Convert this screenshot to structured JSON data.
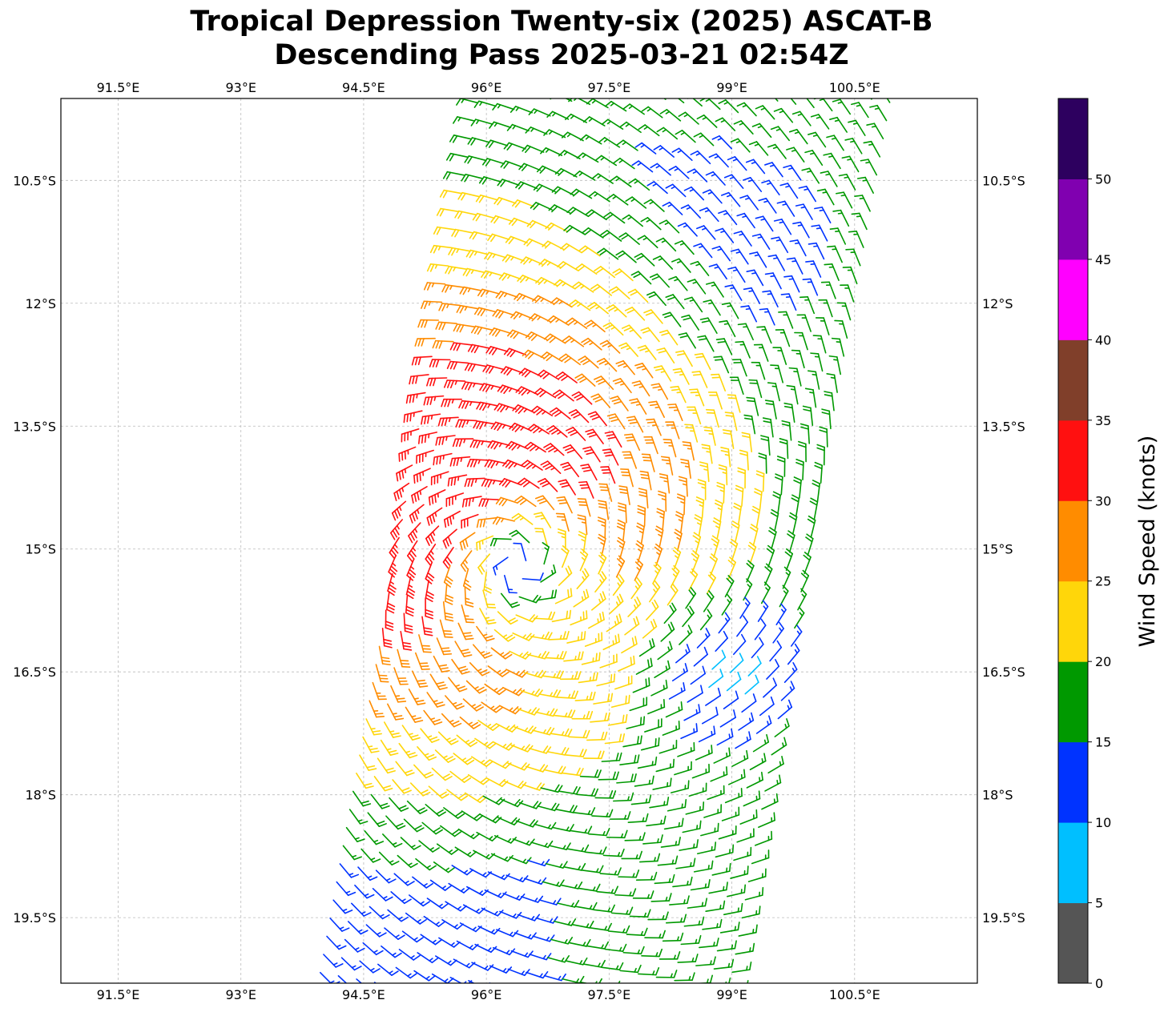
{
  "title": {
    "line1": "Tropical Depression Twenty-six (2025) ASCAT-B",
    "line2": "Descending Pass 2025-03-21 02:54Z"
  },
  "chart_data": {
    "type": "wind_barbs_map",
    "lon_range": [
      90.8,
      102.0
    ],
    "lat_range": [
      -20.3,
      -9.5
    ],
    "lon_ticks": [
      91.5,
      93,
      94.5,
      96,
      97.5,
      99,
      100.5
    ],
    "lon_tick_labels": [
      "91.5°E",
      "93°E",
      "94.5°E",
      "96°E",
      "97.5°E",
      "99°E",
      "100.5°E"
    ],
    "lat_ticks": [
      -10.5,
      -12,
      -13.5,
      -15,
      -16.5,
      -18,
      -19.5
    ],
    "lat_tick_labels": [
      "10.5°S",
      "12°S",
      "13.5°S",
      "15°S",
      "16.5°S",
      "18°S",
      "19.5°S"
    ],
    "grid": true,
    "circulation_center": {
      "lon": 96.4,
      "lat": -15.2
    },
    "max_wind_knots": 35,
    "colorbar": {
      "label": "Wind Speed (knots)",
      "bounds": [
        0,
        5,
        10,
        15,
        20,
        25,
        30,
        35,
        40,
        45,
        50,
        55
      ],
      "tick_labels": [
        "0",
        "5",
        "10",
        "15",
        "20",
        "25",
        "30",
        "35",
        "40",
        "45",
        "50"
      ],
      "colors": [
        "#555555",
        "#00bfff",
        "#0033ff",
        "#009900",
        "#ffd60a",
        "#ff8c00",
        "#ff1010",
        "#803f2a",
        "#ff00ff",
        "#8000b0",
        "#2d005f"
      ]
    }
  }
}
